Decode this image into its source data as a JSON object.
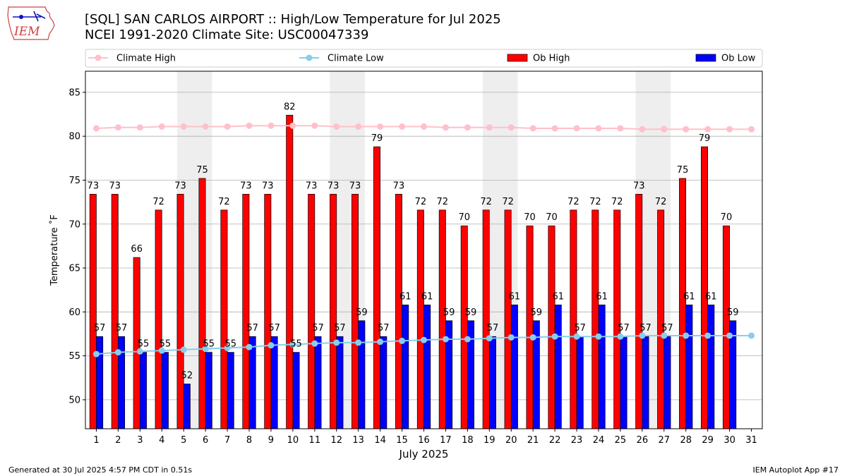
{
  "header": {
    "title_line1": "[SQL] SAN CARLOS AIRPORT :: High/Low Temperature for Jul 2025",
    "title_line2": "NCEI 1991-2020 Climate Site: USC00047339",
    "logo_text": "IEM"
  },
  "footer": {
    "generated": "Generated at 30 Jul 2025 4:57 PM CDT in 0.51s",
    "app": "IEM Autoplot App #17"
  },
  "colors": {
    "ob_high": "#ff0000",
    "ob_low": "#0000ff",
    "climate_high": "#ffc0cb",
    "climate_low": "#87ceeb",
    "weekend_shade": "#eeeeee",
    "grid": "#b0b0b0"
  },
  "chart_data": {
    "type": "bar",
    "xlabel": "July 2025",
    "ylabel": "Temperature ˚F",
    "ylim": [
      46.7,
      87.4
    ],
    "yticks": [
      50,
      55,
      60,
      65,
      70,
      75,
      80,
      85
    ],
    "categories": [
      "1",
      "2",
      "3",
      "4",
      "5",
      "6",
      "7",
      "8",
      "9",
      "10",
      "11",
      "12",
      "13",
      "14",
      "15",
      "16",
      "17",
      "18",
      "19",
      "20",
      "21",
      "22",
      "23",
      "24",
      "25",
      "26",
      "27",
      "28",
      "29",
      "30",
      "31"
    ],
    "grid": "horizontal",
    "legend_position": "top",
    "weekend_shading_days": [
      [
        5,
        6
      ],
      [
        12,
        13
      ],
      [
        19,
        20
      ],
      [
        26,
        27
      ]
    ],
    "series": [
      {
        "name": "Climate High",
        "kind": "line",
        "values": [
          80.9,
          81.0,
          81.0,
          81.1,
          81.1,
          81.1,
          81.1,
          81.2,
          81.2,
          81.2,
          81.2,
          81.1,
          81.1,
          81.1,
          81.1,
          81.1,
          81.0,
          81.0,
          81.0,
          81.0,
          80.9,
          80.9,
          80.9,
          80.9,
          80.9,
          80.8,
          80.8,
          80.8,
          80.8,
          80.8,
          80.8
        ]
      },
      {
        "name": "Climate Low",
        "kind": "line",
        "values": [
          55.2,
          55.4,
          55.5,
          55.6,
          55.7,
          55.8,
          55.9,
          56.0,
          56.2,
          56.3,
          56.4,
          56.5,
          56.5,
          56.6,
          56.7,
          56.8,
          56.9,
          56.9,
          57.0,
          57.1,
          57.1,
          57.2,
          57.2,
          57.2,
          57.2,
          57.3,
          57.3,
          57.3,
          57.3,
          57.3,
          57.3
        ]
      },
      {
        "name": "Ob High",
        "kind": "bar",
        "values": [
          73,
          73,
          66,
          72,
          73,
          75,
          72,
          73,
          73,
          82,
          73,
          73,
          73,
          79,
          73,
          72,
          72,
          70,
          72,
          72,
          70,
          70,
          72,
          72,
          72,
          73,
          72,
          75,
          79,
          70,
          null
        ],
        "plotted": [
          73.4,
          73.4,
          66.2,
          71.6,
          73.4,
          75.2,
          71.6,
          73.4,
          73.4,
          82.4,
          73.4,
          73.4,
          73.4,
          78.8,
          73.4,
          71.6,
          71.6,
          69.8,
          71.6,
          71.6,
          69.8,
          69.8,
          71.6,
          71.6,
          71.6,
          73.4,
          71.6,
          75.2,
          78.8,
          69.8,
          null
        ]
      },
      {
        "name": "Ob Low",
        "kind": "bar",
        "values": [
          57,
          57,
          55,
          55,
          52,
          55,
          55,
          57,
          57,
          55,
          57,
          57,
          59,
          57,
          61,
          61,
          59,
          59,
          57,
          61,
          59,
          61,
          57,
          61,
          57,
          57,
          57,
          61,
          61,
          59,
          null
        ],
        "plotted": [
          57.2,
          57.2,
          55.4,
          55.4,
          51.8,
          55.4,
          55.4,
          57.2,
          57.2,
          55.4,
          57.2,
          57.2,
          59.0,
          57.2,
          60.8,
          60.8,
          59.0,
          59.0,
          57.2,
          60.8,
          59.0,
          60.8,
          57.2,
          60.8,
          57.2,
          57.2,
          57.2,
          60.8,
          60.8,
          59.0,
          null
        ]
      }
    ]
  }
}
